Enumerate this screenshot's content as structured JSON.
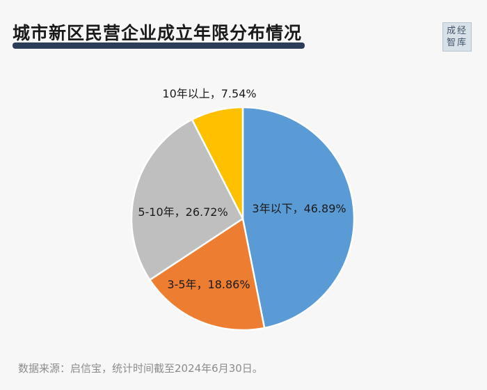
{
  "header": {
    "title": "城市新区民营企业成立年限分布情况",
    "logo_line1": "成经",
    "logo_line2": "智库"
  },
  "footer": {
    "source": "数据来源：启信宝，统计时间截至2024年6月30日。"
  },
  "chart_data": {
    "type": "pie",
    "slices": [
      {
        "label": "3年以下，46.89%",
        "category": "3年以下",
        "value": 46.89,
        "color": "#5b9bd5"
      },
      {
        "label": "3-5年，18.86%",
        "category": "3-5年",
        "value": 18.86,
        "color": "#ed7d31"
      },
      {
        "label": "5-10年，26.72%",
        "category": "5-10年",
        "value": 26.72,
        "color": "#bfbfbf"
      },
      {
        "label": "10年以上，7.54%",
        "category": "10年以上",
        "value": 7.54,
        "color": "#ffc000"
      }
    ],
    "start_angle": "12 o'clock",
    "direction": "clockwise",
    "legend": "none"
  }
}
